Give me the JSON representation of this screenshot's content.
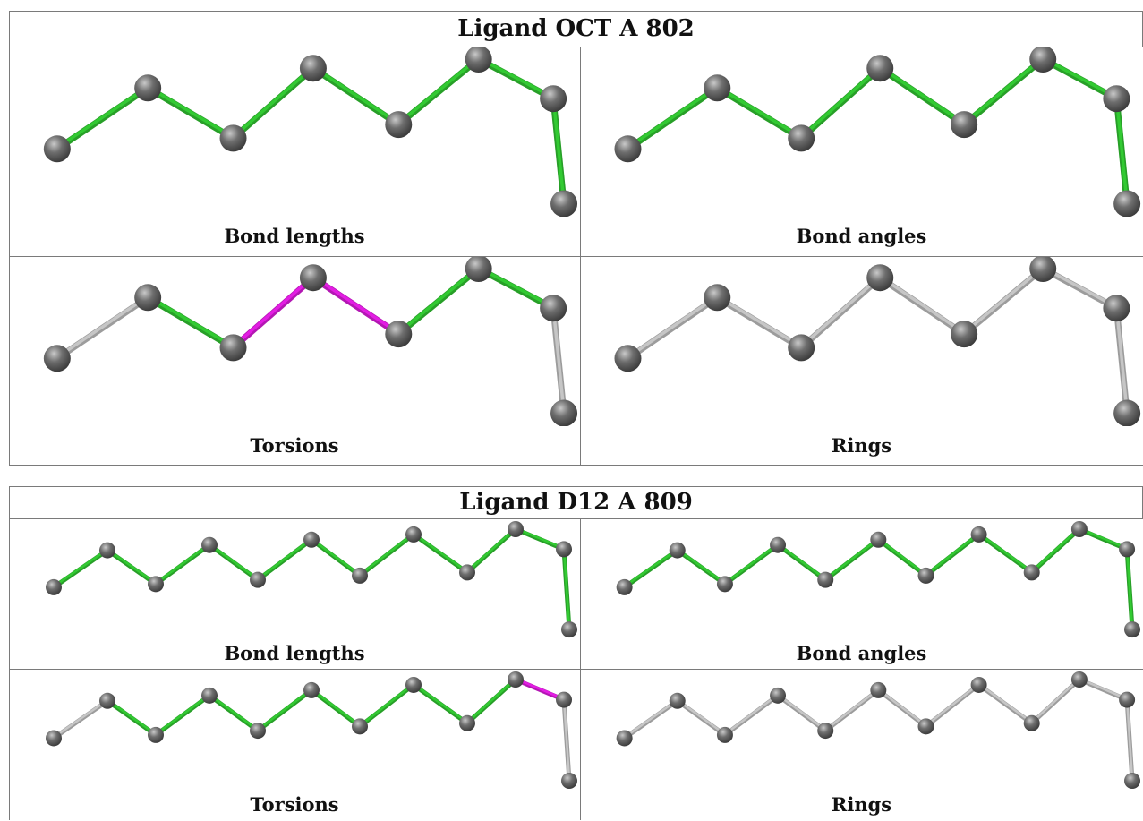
{
  "colors": {
    "ok": "#33cc33",
    "flag": "#e61ee6",
    "neutral": "#c8c8c8",
    "atom": "#6e6e6e"
  },
  "panels": [
    {
      "title": "Ligand OCT A 802",
      "atoms_top": [
        [
          0.04,
          0.59
        ],
        [
          0.21,
          0.19
        ],
        [
          0.37,
          0.52
        ],
        [
          0.52,
          0.06
        ],
        [
          0.68,
          0.43
        ],
        [
          0.83,
          0.0
        ],
        [
          0.97,
          0.26
        ],
        [
          0.99,
          0.95
        ]
      ],
      "atoms_bottom": [
        [
          0.04,
          0.59
        ],
        [
          0.21,
          0.19
        ],
        [
          0.37,
          0.52
        ],
        [
          0.52,
          0.06
        ],
        [
          0.68,
          0.43
        ],
        [
          0.83,
          0.0
        ],
        [
          0.97,
          0.26
        ],
        [
          0.99,
          0.95
        ]
      ],
      "cells": [
        {
          "caption": "Bond lengths",
          "bonds": [
            "ok",
            "ok",
            "ok",
            "ok",
            "ok",
            "ok",
            "ok"
          ]
        },
        {
          "caption": "Bond angles",
          "bonds": [
            "ok",
            "ok",
            "ok",
            "ok",
            "ok",
            "ok",
            "ok"
          ]
        },
        {
          "caption": "Torsions",
          "bonds": [
            "neutral",
            "ok",
            "flag",
            "flag",
            "ok",
            "ok",
            "neutral"
          ]
        },
        {
          "caption": "Rings",
          "bonds": [
            "neutral",
            "neutral",
            "neutral",
            "neutral",
            "neutral",
            "neutral",
            "neutral"
          ]
        }
      ]
    },
    {
      "title": "Ligand D12 A 809",
      "atoms_top": [
        [
          0.04,
          0.55
        ],
        [
          0.14,
          0.2
        ],
        [
          0.23,
          0.52
        ],
        [
          0.33,
          0.15
        ],
        [
          0.42,
          0.48
        ],
        [
          0.52,
          0.1
        ],
        [
          0.61,
          0.44
        ],
        [
          0.71,
          0.05
        ],
        [
          0.81,
          0.41
        ],
        [
          0.9,
          0.0
        ],
        [
          0.99,
          0.19
        ],
        [
          1.0,
          0.95
        ]
      ],
      "atoms_bottom": [
        [
          0.04,
          0.55
        ],
        [
          0.14,
          0.2
        ],
        [
          0.23,
          0.52
        ],
        [
          0.33,
          0.15
        ],
        [
          0.42,
          0.48
        ],
        [
          0.52,
          0.1
        ],
        [
          0.61,
          0.44
        ],
        [
          0.71,
          0.05
        ],
        [
          0.81,
          0.41
        ],
        [
          0.9,
          0.0
        ],
        [
          0.99,
          0.19
        ],
        [
          1.0,
          0.95
        ]
      ],
      "cells": [
        {
          "caption": "Bond lengths",
          "bonds": [
            "ok",
            "ok",
            "ok",
            "ok",
            "ok",
            "ok",
            "ok",
            "ok",
            "ok",
            "ok",
            "ok"
          ]
        },
        {
          "caption": "Bond angles",
          "bonds": [
            "ok",
            "ok",
            "ok",
            "ok",
            "ok",
            "ok",
            "ok",
            "ok",
            "ok",
            "ok",
            "ok"
          ]
        },
        {
          "caption": "Torsions",
          "bonds": [
            "neutral",
            "ok",
            "ok",
            "ok",
            "ok",
            "ok",
            "ok",
            "ok",
            "ok",
            "flag",
            "neutral"
          ]
        },
        {
          "caption": "Rings",
          "bonds": [
            "neutral",
            "neutral",
            "neutral",
            "neutral",
            "neutral",
            "neutral",
            "neutral",
            "neutral",
            "neutral",
            "neutral",
            "neutral"
          ]
        }
      ]
    }
  ]
}
